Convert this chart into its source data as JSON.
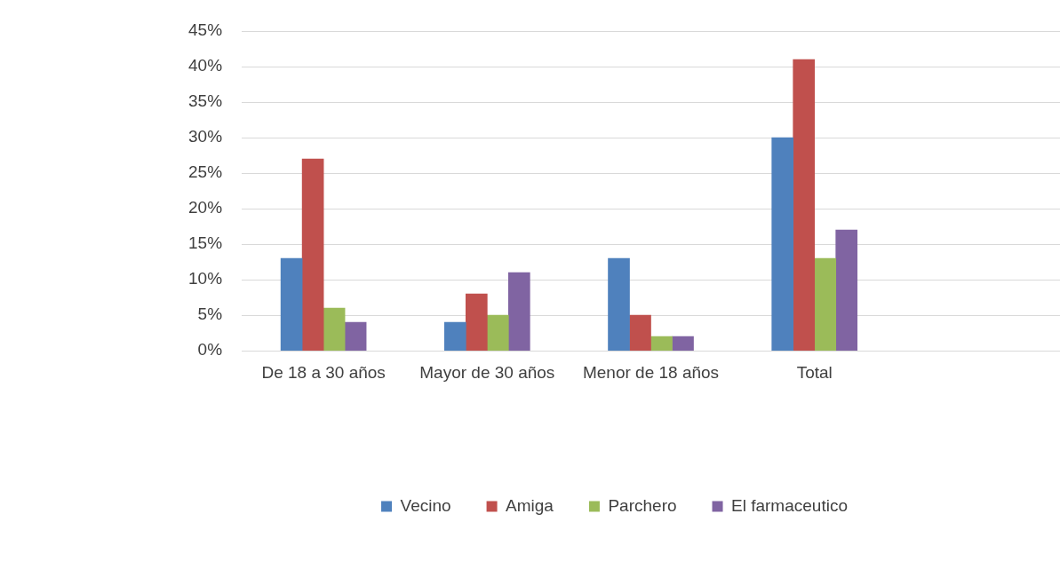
{
  "chart_data": {
    "type": "bar",
    "categories": [
      "De 18 a 30 años",
      "Mayor de 30 años",
      "Menor de 18 años",
      "Total",
      null
    ],
    "series": [
      {
        "name": "Vecino",
        "color": "#4f81bd",
        "values": [
          13,
          4,
          13,
          30,
          null
        ]
      },
      {
        "name": "Amiga",
        "color": "#c0504d",
        "values": [
          27,
          8,
          5,
          41,
          null
        ]
      },
      {
        "name": "Parchero",
        "color": "#9bbb59",
        "values": [
          6,
          5,
          2,
          13,
          null
        ]
      },
      {
        "name": "El farmaceutico",
        "color": "#8064a2",
        "values": [
          4,
          11,
          2,
          17,
          null
        ]
      }
    ],
    "ylim": [
      0,
      45
    ],
    "yticks": [
      {
        "value": 0,
        "label": "0%"
      },
      {
        "value": 5,
        "label": "5%"
      },
      {
        "value": 10,
        "label": "10%"
      },
      {
        "value": 15,
        "label": "15%"
      },
      {
        "value": 20,
        "label": "20%"
      },
      {
        "value": 25,
        "label": "25%"
      },
      {
        "value": 30,
        "label": "30%"
      },
      {
        "value": 35,
        "label": "35%"
      },
      {
        "value": 40,
        "label": "40%"
      },
      {
        "value": 45,
        "label": "45%"
      }
    ],
    "grid": "y",
    "legend": "bottom"
  }
}
